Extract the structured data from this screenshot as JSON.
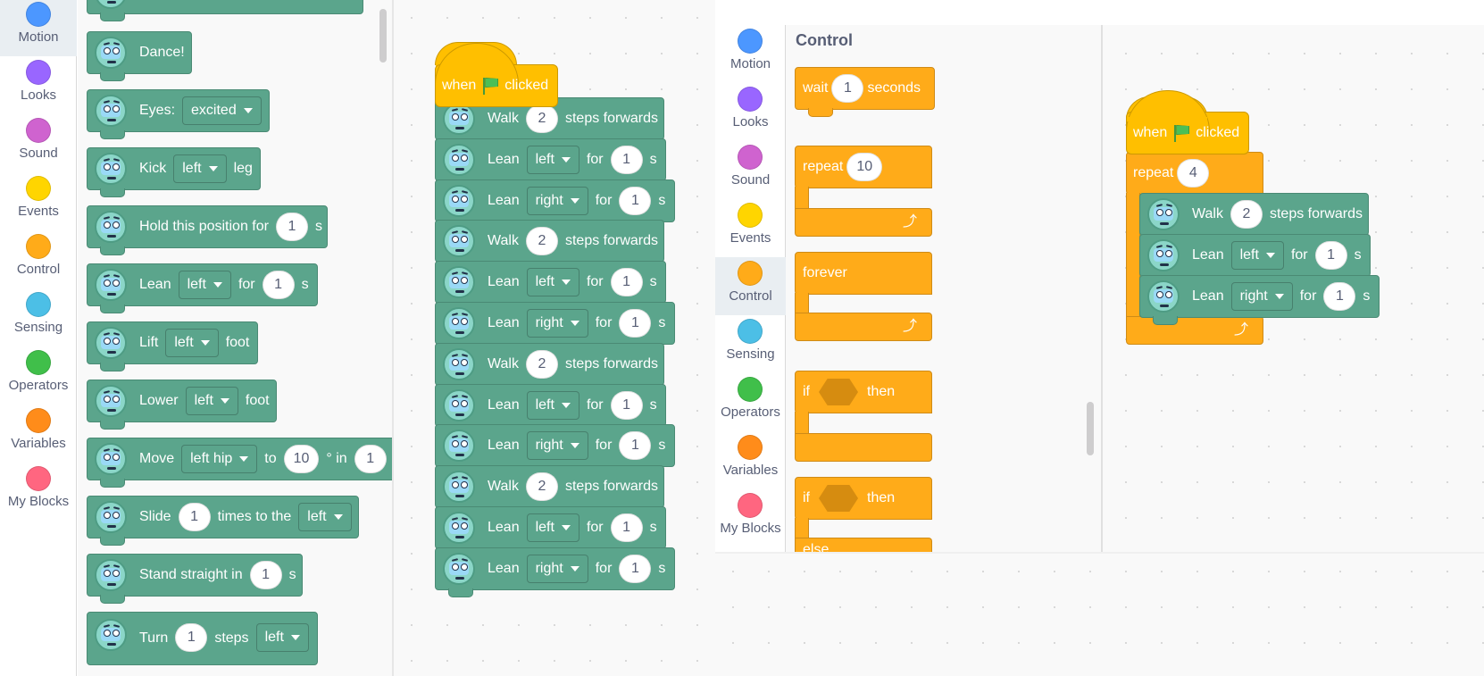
{
  "left_categories": [
    {
      "label": "Motion",
      "color": "#4c97ff",
      "selected": true
    },
    {
      "label": "Looks",
      "color": "#9966ff",
      "selected": false
    },
    {
      "label": "Sound",
      "color": "#cf63cf",
      "selected": false
    },
    {
      "label": "Events",
      "color": "#ffd500",
      "selected": false
    },
    {
      "label": "Control",
      "color": "#ffab19",
      "selected": false
    },
    {
      "label": "Sensing",
      "color": "#4cbfe6",
      "selected": false
    },
    {
      "label": "Operators",
      "color": "#40bf4a",
      "selected": false
    },
    {
      "label": "Variables",
      "color": "#ff8c1a",
      "selected": false
    },
    {
      "label": "My Blocks",
      "color": "#ff6680",
      "selected": false
    }
  ],
  "right_categories": [
    {
      "label": "Motion",
      "color": "#4c97ff",
      "selected": false
    },
    {
      "label": "Looks",
      "color": "#9966ff",
      "selected": false
    },
    {
      "label": "Sound",
      "color": "#cf63cf",
      "selected": false
    },
    {
      "label": "Events",
      "color": "#ffd500",
      "selected": false
    },
    {
      "label": "Control",
      "color": "#ffab19",
      "selected": true
    },
    {
      "label": "Sensing",
      "color": "#4cbfe6",
      "selected": false
    },
    {
      "label": "Operators",
      "color": "#40bf4a",
      "selected": false
    },
    {
      "label": "Variables",
      "color": "#ff8c1a",
      "selected": false
    },
    {
      "label": "My Blocks",
      "color": "#ff6680",
      "selected": false
    }
  ],
  "palette": {
    "dance": "Dance!",
    "eyes": {
      "label": "Eyes:",
      "value": "excited"
    },
    "kick": {
      "label": "Kick",
      "value": "left",
      "suffix": "leg"
    },
    "hold": {
      "label": "Hold this position for",
      "value": "1",
      "suffix": "s"
    },
    "lean": {
      "label": "Lean",
      "dir": "left",
      "for": "for",
      "value": "1",
      "suffix": "s"
    },
    "lift": {
      "label": "Lift",
      "value": "left",
      "suffix": "foot"
    },
    "lower": {
      "label": "Lower",
      "value": "left",
      "suffix": "foot"
    },
    "move": {
      "label": "Move",
      "joint": "left hip",
      "to": "to",
      "angle": "10",
      "deg_in": "° in",
      "secs": "1"
    },
    "slide": {
      "label": "Slide",
      "value": "1",
      "mid": "times to the",
      "dir": "left"
    },
    "stand": {
      "label": "Stand straight in",
      "value": "1",
      "suffix": "s"
    },
    "turn": {
      "label": "Turn",
      "value": "1",
      "mid": "steps",
      "dir": "left"
    }
  },
  "script1": {
    "hat": {
      "when": "when",
      "clicked": "clicked"
    },
    "blocks": [
      {
        "kind": "walk",
        "label": "Walk",
        "value": "2",
        "suffix": "steps forwards"
      },
      {
        "kind": "lean",
        "label": "Lean",
        "dir": "left",
        "for": "for",
        "value": "1",
        "suffix": "s"
      },
      {
        "kind": "lean",
        "label": "Lean",
        "dir": "right",
        "for": "for",
        "value": "1",
        "suffix": "s"
      },
      {
        "kind": "walk",
        "label": "Walk",
        "value": "2",
        "suffix": "steps forwards"
      },
      {
        "kind": "lean",
        "label": "Lean",
        "dir": "left",
        "for": "for",
        "value": "1",
        "suffix": "s"
      },
      {
        "kind": "lean",
        "label": "Lean",
        "dir": "right",
        "for": "for",
        "value": "1",
        "suffix": "s"
      },
      {
        "kind": "walk",
        "label": "Walk",
        "value": "2",
        "suffix": "steps forwards"
      },
      {
        "kind": "lean",
        "label": "Lean",
        "dir": "left",
        "for": "for",
        "value": "1",
        "suffix": "s"
      },
      {
        "kind": "lean",
        "label": "Lean",
        "dir": "right",
        "for": "for",
        "value": "1",
        "suffix": "s"
      },
      {
        "kind": "walk",
        "label": "Walk",
        "value": "2",
        "suffix": "steps forwards"
      },
      {
        "kind": "lean",
        "label": "Lean",
        "dir": "left",
        "for": "for",
        "value": "1",
        "suffix": "s"
      },
      {
        "kind": "lean",
        "label": "Lean",
        "dir": "right",
        "for": "for",
        "value": "1",
        "suffix": "s"
      }
    ]
  },
  "control_palette": {
    "title": "Control",
    "wait": {
      "label": "wait",
      "value": "1",
      "suffix": "seconds"
    },
    "repeat": {
      "label": "repeat",
      "value": "10"
    },
    "forever": "forever",
    "if_then": {
      "if": "if",
      "then": "then"
    },
    "if_else": {
      "if": "if",
      "then": "then",
      "else": "else"
    }
  },
  "script2": {
    "hat": {
      "when": "when",
      "clicked": "clicked"
    },
    "repeat": {
      "label": "repeat",
      "value": "4"
    },
    "walk": {
      "label": "Walk",
      "value": "2",
      "suffix": "steps forwards"
    },
    "lean_left": {
      "label": "Lean",
      "dir": "left",
      "for": "for",
      "value": "1",
      "suffix": "s"
    },
    "lean_right": {
      "label": "Lean",
      "dir": "right",
      "for": "for",
      "value": "1",
      "suffix": "s"
    }
  }
}
